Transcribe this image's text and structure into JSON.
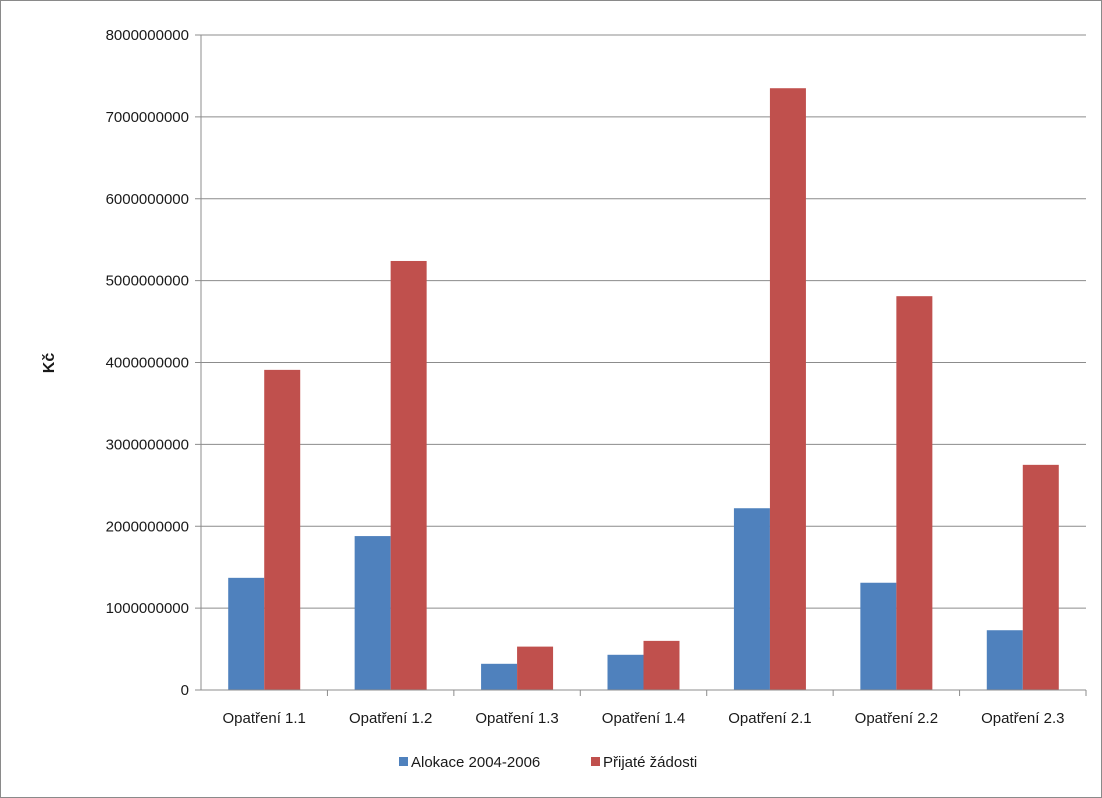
{
  "chart_data": {
    "type": "bar",
    "title": "",
    "xlabel": "",
    "ylabel": "Kč",
    "ylim": [
      0,
      8000000000
    ],
    "yticks": [
      0,
      1000000000,
      2000000000,
      3000000000,
      4000000000,
      5000000000,
      6000000000,
      7000000000,
      8000000000
    ],
    "grid": true,
    "legend_position": "bottom",
    "categories": [
      "Opatření 1.1",
      "Opatření 1.2",
      "Opatření 1.3",
      "Opatření 1.4",
      "Opatření 2.1",
      "Opatření 2.2",
      "Opatření 2.3"
    ],
    "series": [
      {
        "name": "Alokace 2004-2006",
        "color": "#4f81bd",
        "values": [
          1370000000,
          1880000000,
          320000000,
          430000000,
          2220000000,
          1310000000,
          730000000
        ]
      },
      {
        "name": "Přijaté žádosti",
        "color": "#c0504d",
        "values": [
          3910000000,
          5240000000,
          530000000,
          600000000,
          7350000000,
          4810000000,
          2750000000
        ]
      }
    ]
  }
}
